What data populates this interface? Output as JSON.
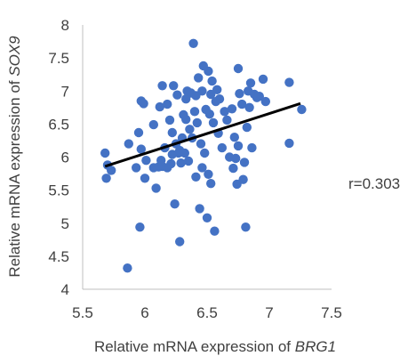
{
  "chart_data": {
    "type": "scatter",
    "xlabel": {
      "prefix": "Relative mRNA expression of ",
      "gene": "BRG1"
    },
    "ylabel": {
      "prefix": "Relative mRNA expression of ",
      "gene": "SOX9"
    },
    "xlim": [
      5.5,
      7.5
    ],
    "ylim": [
      4,
      8
    ],
    "x_ticks": [
      "5.5",
      "6",
      "6.5",
      "7",
      "7.5"
    ],
    "y_ticks": [
      "4",
      "4.5",
      "5",
      "5.5",
      "6",
      "6.5",
      "7",
      "7.5",
      "8"
    ],
    "grid": false,
    "marker_color": "#4472C4",
    "trendline": {
      "color": "#000000",
      "x": [
        5.68,
        7.25
      ],
      "y": [
        5.86,
        6.81
      ]
    },
    "annotation": "r=0.303",
    "points": [
      {
        "x": 5.68,
        "y": 6.06
      },
      {
        "x": 5.69,
        "y": 5.68
      },
      {
        "x": 5.7,
        "y": 5.88
      },
      {
        "x": 5.73,
        "y": 5.8
      },
      {
        "x": 5.86,
        "y": 4.32
      },
      {
        "x": 5.87,
        "y": 6.2
      },
      {
        "x": 5.93,
        "y": 5.84
      },
      {
        "x": 5.95,
        "y": 6.37
      },
      {
        "x": 5.96,
        "y": 4.94
      },
      {
        "x": 5.97,
        "y": 6.12
      },
      {
        "x": 5.97,
        "y": 6.85
      },
      {
        "x": 5.99,
        "y": 6.81
      },
      {
        "x": 6.0,
        "y": 5.68
      },
      {
        "x": 6.01,
        "y": 5.95
      },
      {
        "x": 6.07,
        "y": 6.49
      },
      {
        "x": 6.09,
        "y": 5.53
      },
      {
        "x": 6.11,
        "y": 5.85
      },
      {
        "x": 6.12,
        "y": 6.76
      },
      {
        "x": 6.13,
        "y": 5.95
      },
      {
        "x": 6.14,
        "y": 7.08
      },
      {
        "x": 6.16,
        "y": 6.14
      },
      {
        "x": 6.18,
        "y": 5.84
      },
      {
        "x": 6.18,
        "y": 6.8
      },
      {
        "x": 6.2,
        "y": 6.56
      },
      {
        "x": 6.21,
        "y": 5.9
      },
      {
        "x": 6.22,
        "y": 6.37
      },
      {
        "x": 6.23,
        "y": 7.08
      },
      {
        "x": 6.24,
        "y": 5.29
      },
      {
        "x": 6.25,
        "y": 6.2
      },
      {
        "x": 6.26,
        "y": 6.94
      },
      {
        "x": 6.27,
        "y": 6.06
      },
      {
        "x": 6.28,
        "y": 4.72
      },
      {
        "x": 6.29,
        "y": 5.91
      },
      {
        "x": 6.3,
        "y": 6.29
      },
      {
        "x": 6.31,
        "y": 6.64
      },
      {
        "x": 6.32,
        "y": 6.06
      },
      {
        "x": 6.33,
        "y": 6.88
      },
      {
        "x": 6.34,
        "y": 7.0
      },
      {
        "x": 6.35,
        "y": 5.94
      },
      {
        "x": 6.36,
        "y": 6.42
      },
      {
        "x": 6.37,
        "y": 6.97
      },
      {
        "x": 6.38,
        "y": 6.29
      },
      {
        "x": 6.39,
        "y": 7.72
      },
      {
        "x": 6.4,
        "y": 6.69
      },
      {
        "x": 6.41,
        "y": 5.7
      },
      {
        "x": 6.42,
        "y": 6.52
      },
      {
        "x": 6.43,
        "y": 7.2
      },
      {
        "x": 6.44,
        "y": 5.22
      },
      {
        "x": 6.45,
        "y": 6.2
      },
      {
        "x": 6.46,
        "y": 7.0
      },
      {
        "x": 6.47,
        "y": 7.38
      },
      {
        "x": 6.48,
        "y": 6.06
      },
      {
        "x": 6.49,
        "y": 6.72
      },
      {
        "x": 6.5,
        "y": 5.08
      },
      {
        "x": 6.51,
        "y": 7.3
      },
      {
        "x": 6.52,
        "y": 6.65
      },
      {
        "x": 6.53,
        "y": 5.6
      },
      {
        "x": 6.54,
        "y": 7.15
      },
      {
        "x": 6.55,
        "y": 6.52
      },
      {
        "x": 6.56,
        "y": 4.88
      },
      {
        "x": 6.57,
        "y": 6.84
      },
      {
        "x": 6.58,
        "y": 7.02
      },
      {
        "x": 6.59,
        "y": 6.36
      },
      {
        "x": 6.6,
        "y": 6.88
      },
      {
        "x": 6.62,
        "y": 6.14
      },
      {
        "x": 6.64,
        "y": 6.69
      },
      {
        "x": 6.66,
        "y": 6.56
      },
      {
        "x": 6.68,
        "y": 6.0
      },
      {
        "x": 6.7,
        "y": 6.73
      },
      {
        "x": 6.71,
        "y": 5.83
      },
      {
        "x": 6.72,
        "y": 6.3
      },
      {
        "x": 6.73,
        "y": 5.98
      },
      {
        "x": 6.74,
        "y": 5.59
      },
      {
        "x": 6.75,
        "y": 6.17
      },
      {
        "x": 6.75,
        "y": 7.34
      },
      {
        "x": 6.76,
        "y": 6.96
      },
      {
        "x": 6.78,
        "y": 6.8
      },
      {
        "x": 6.8,
        "y": 5.92
      },
      {
        "x": 6.81,
        "y": 4.94
      },
      {
        "x": 6.82,
        "y": 6.45
      },
      {
        "x": 6.83,
        "y": 7.0
      },
      {
        "x": 6.84,
        "y": 6.75
      },
      {
        "x": 6.85,
        "y": 7.12
      },
      {
        "x": 6.86,
        "y": 6.14
      },
      {
        "x": 6.88,
        "y": 6.95
      },
      {
        "x": 6.9,
        "y": 6.9
      },
      {
        "x": 6.92,
        "y": 6.92
      },
      {
        "x": 6.95,
        "y": 7.18
      },
      {
        "x": 6.97,
        "y": 6.84
      },
      {
        "x": 7.16,
        "y": 7.13
      },
      {
        "x": 7.16,
        "y": 6.21
      },
      {
        "x": 7.26,
        "y": 6.72
      },
      {
        "x": 6.07,
        "y": 5.84
      },
      {
        "x": 6.14,
        "y": 5.86
      },
      {
        "x": 6.22,
        "y": 6.04
      },
      {
        "x": 6.28,
        "y": 6.1
      },
      {
        "x": 6.46,
        "y": 5.84
      },
      {
        "x": 6.51,
        "y": 5.74
      },
      {
        "x": 6.79,
        "y": 5.66
      },
      {
        "x": 6.33,
        "y": 6.57
      },
      {
        "x": 6.41,
        "y": 6.93
      },
      {
        "x": 6.53,
        "y": 6.95
      }
    ]
  }
}
